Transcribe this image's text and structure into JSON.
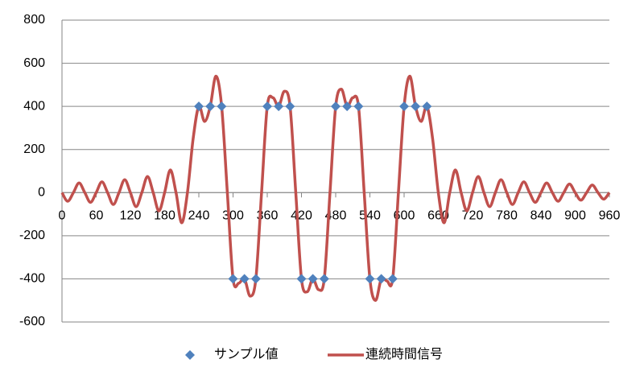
{
  "chart_data": {
    "type": "scatter",
    "xlim": [
      0,
      960
    ],
    "xticks": [
      0,
      60,
      120,
      180,
      240,
      300,
      360,
      420,
      480,
      540,
      600,
      660,
      720,
      780,
      840,
      900,
      960
    ],
    "ylim": [
      -600,
      800
    ],
    "yticks": [
      -600,
      -400,
      -200,
      0,
      200,
      400,
      600,
      800
    ],
    "grid": true,
    "legend": "bottom",
    "series": [
      {
        "name": "サンプル値",
        "type": "scatter",
        "color": "#4f81bd",
        "x": [
          240,
          260,
          280,
          300,
          320,
          340,
          360,
          380,
          400,
          420,
          440,
          460,
          480,
          500,
          520,
          540,
          560,
          580,
          600,
          620,
          640
        ],
        "values": [
          400,
          400,
          400,
          -400,
          -400,
          -400,
          400,
          400,
          400,
          -400,
          -400,
          -400,
          400,
          400,
          400,
          -400,
          -400,
          -400,
          400,
          400,
          400
        ]
      },
      {
        "name": "連続時間信号",
        "type": "line",
        "color": "#c0504d",
        "x": [
          0,
          10,
          20,
          30,
          40,
          50,
          60,
          70,
          80,
          90,
          100,
          110,
          120,
          130,
          140,
          150,
          160,
          170,
          180,
          190,
          200,
          210,
          220,
          230,
          240,
          250,
          260,
          270,
          280,
          290,
          300,
          310,
          320,
          330,
          340,
          350,
          360,
          370,
          380,
          390,
          400,
          410,
          420,
          430,
          440,
          450,
          460,
          470,
          480,
          490,
          500,
          510,
          520,
          530,
          540,
          550,
          560,
          570,
          580,
          590,
          600,
          610,
          620,
          630,
          640,
          650,
          660,
          670,
          680,
          690,
          700,
          710,
          720,
          730,
          740,
          750,
          760,
          770,
          780,
          790,
          800,
          810,
          820,
          830,
          840,
          850,
          860,
          870,
          880,
          890,
          900,
          910,
          920,
          930,
          940,
          950,
          960
        ],
        "values": [
          0,
          -40,
          0,
          45,
          0,
          -45,
          0,
          50,
          0,
          -55,
          0,
          60,
          0,
          -65,
          0,
          75,
          0,
          -85,
          0,
          105,
          0,
          -140,
          0,
          250,
          400,
          330,
          400,
          540,
          400,
          0,
          -400,
          -420,
          -400,
          -480,
          -400,
          0,
          400,
          440,
          400,
          470,
          400,
          0,
          -400,
          -460,
          -400,
          -450,
          -400,
          0,
          400,
          480,
          400,
          440,
          400,
          0,
          -400,
          -500,
          -400,
          -410,
          -400,
          0,
          400,
          540,
          400,
          330,
          400,
          250,
          0,
          -140,
          0,
          105,
          0,
          -85,
          0,
          75,
          0,
          -65,
          0,
          60,
          0,
          -55,
          0,
          50,
          0,
          -45,
          0,
          45,
          0,
          -40,
          0,
          40,
          0,
          -35,
          0,
          35,
          0,
          -30,
          0
        ]
      }
    ]
  }
}
